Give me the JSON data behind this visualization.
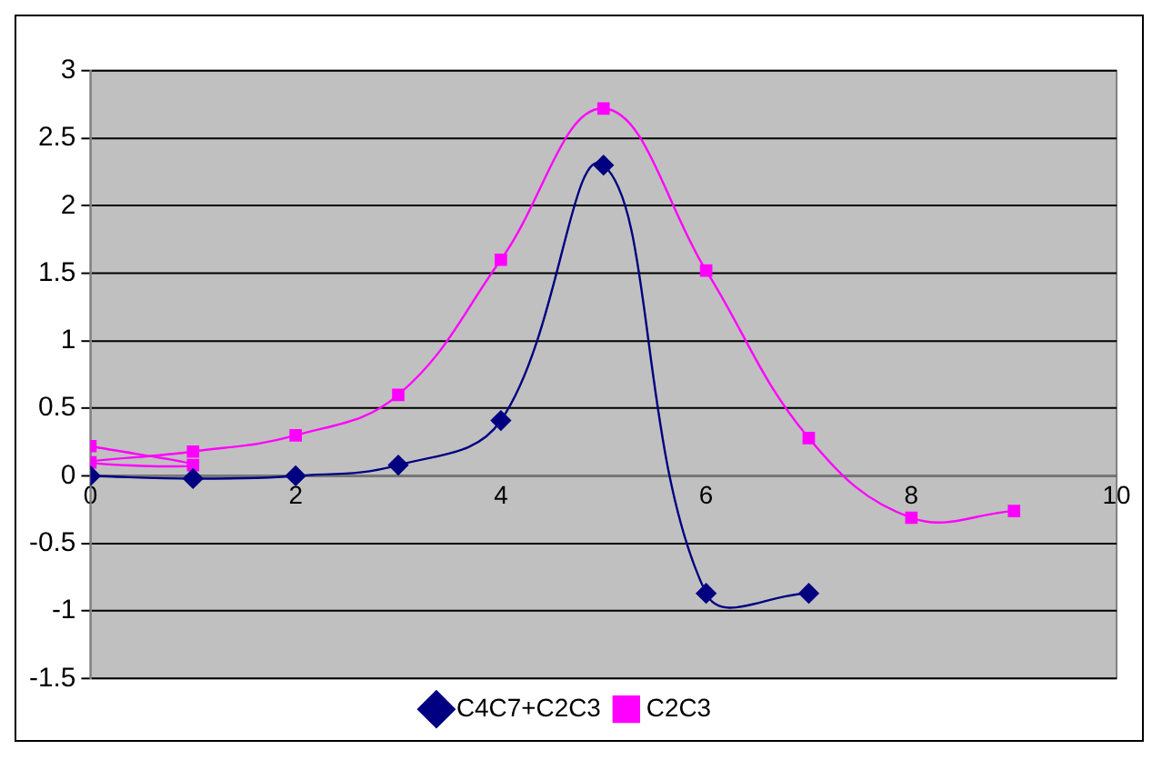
{
  "chart_data": {
    "type": "line",
    "xlim": [
      0,
      10
    ],
    "xticks": [
      0,
      2,
      4,
      6,
      8,
      10
    ],
    "ylim": [
      -1.5,
      3
    ],
    "yticks": [
      -1.5,
      -1,
      -0.5,
      0,
      0.5,
      1,
      1.5,
      2,
      2.5,
      3
    ],
    "grid": "y",
    "legend": "bottom",
    "series": [
      {
        "name": "C4C7+C2C3",
        "color": "#000080",
        "marker": "diamond",
        "x": [
          0,
          1,
          2,
          3,
          4,
          5,
          6,
          7
        ],
        "values": [
          0,
          -0.02,
          0,
          0.08,
          0.41,
          2.3,
          -0.87,
          -0.87
        ]
      },
      {
        "name": "C2C3",
        "color": "#ff00ff",
        "marker": "square",
        "x": [
          0,
          1,
          0,
          1,
          2,
          3,
          4,
          5,
          6,
          7,
          8,
          9
        ],
        "values": [
          0.22,
          0.08,
          0.1,
          0.18,
          0.3,
          0.6,
          1.6,
          2.72,
          1.52,
          0.28,
          -0.31,
          -0.26
        ]
      }
    ]
  }
}
